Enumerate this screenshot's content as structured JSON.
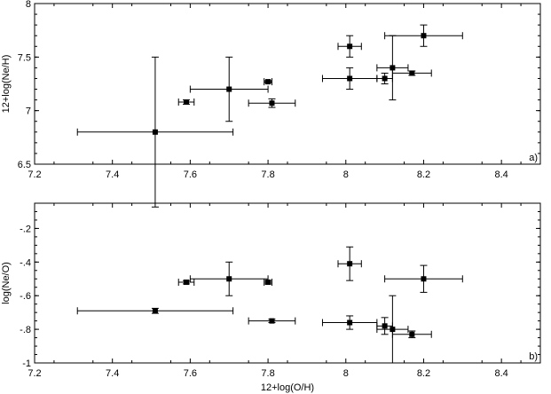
{
  "chart_data": [
    {
      "type": "scatter",
      "panel_label": "a)",
      "ylabel": "12+log(Ne/H)",
      "xlabel": "",
      "xlim": [
        7.2,
        8.5
      ],
      "ylim": [
        6.5,
        8.0
      ],
      "xticks": [
        7.2,
        7.4,
        7.6,
        7.8,
        8.0,
        8.2,
        8.4
      ],
      "xtick_labels": [
        "7.2",
        "7.4",
        "7.6",
        "7.8",
        "8",
        "8.2",
        "8.4"
      ],
      "yticks": [
        6.5,
        7.0,
        7.5,
        8.0
      ],
      "ytick_labels": [
        "6.5",
        "7",
        "7.5",
        "8"
      ],
      "points": [
        {
          "x": 7.51,
          "y": 6.8,
          "xerr": 0.2,
          "yerr": 0.7
        },
        {
          "x": 7.59,
          "y": 7.08,
          "xerr": 0.02,
          "yerr": 0.02
        },
        {
          "x": 7.7,
          "y": 7.2,
          "xerr": 0.1,
          "yerr": 0.3
        },
        {
          "x": 7.8,
          "y": 7.27,
          "xerr": 0.01,
          "yerr": 0.01
        },
        {
          "x": 7.81,
          "y": 7.07,
          "xerr": 0.06,
          "yerr": 0.04
        },
        {
          "x": 8.01,
          "y": 7.6,
          "xerr": 0.03,
          "yerr": 0.1
        },
        {
          "x": 8.01,
          "y": 7.3,
          "xerr": 0.07,
          "yerr": 0.1
        },
        {
          "x": 8.1,
          "y": 7.3,
          "xerr": 0.02,
          "yerr": 0.05
        },
        {
          "x": 8.12,
          "y": 7.4,
          "xerr": 0.04,
          "yerr": 0.3
        },
        {
          "x": 8.17,
          "y": 7.35,
          "xerr": 0.05,
          "yerr": 0.02
        },
        {
          "x": 8.2,
          "y": 7.7,
          "xerr": 0.1,
          "yerr": 0.1
        }
      ]
    },
    {
      "type": "scatter",
      "panel_label": "b)",
      "ylabel": "log(Ne/O)",
      "xlabel": "12+log(O/H)",
      "xlim": [
        7.2,
        8.5
      ],
      "ylim": [
        -1.0,
        -0.05
      ],
      "xticks": [
        7.2,
        7.4,
        7.6,
        7.8,
        8.0,
        8.2,
        8.4
      ],
      "xtick_labels": [
        "7.2",
        "7.4",
        "7.6",
        "7.8",
        "8",
        "8.2",
        "8.4"
      ],
      "yticks": [
        -1.0,
        -0.8,
        -0.6,
        -0.4,
        -0.2
      ],
      "ytick_labels": [
        "-1",
        "-.8",
        "-.6",
        "-.4",
        "-.2"
      ],
      "points": [
        {
          "x": 7.51,
          "y": -0.69,
          "xerr": 0.2,
          "yerr": 0.015
        },
        {
          "x": 7.59,
          "y": -0.52,
          "xerr": 0.02,
          "yerr": 0.01
        },
        {
          "x": 7.7,
          "y": -0.5,
          "xerr": 0.1,
          "yerr": 0.1
        },
        {
          "x": 7.8,
          "y": -0.52,
          "xerr": 0.01,
          "yerr": 0.01
        },
        {
          "x": 7.81,
          "y": -0.75,
          "xerr": 0.06,
          "yerr": 0.01
        },
        {
          "x": 8.01,
          "y": -0.41,
          "xerr": 0.03,
          "yerr": 0.1
        },
        {
          "x": 8.01,
          "y": -0.76,
          "xerr": 0.07,
          "yerr": 0.04
        },
        {
          "x": 8.1,
          "y": -0.78,
          "xerr": 0.02,
          "yerr": 0.05
        },
        {
          "x": 8.12,
          "y": -0.8,
          "xerr": 0.04,
          "yerr": 0.2
        },
        {
          "x": 8.17,
          "y": -0.83,
          "xerr": 0.05,
          "yerr": 0.02
        },
        {
          "x": 8.2,
          "y": -0.5,
          "xerr": 0.1,
          "yerr": 0.08
        }
      ]
    }
  ]
}
